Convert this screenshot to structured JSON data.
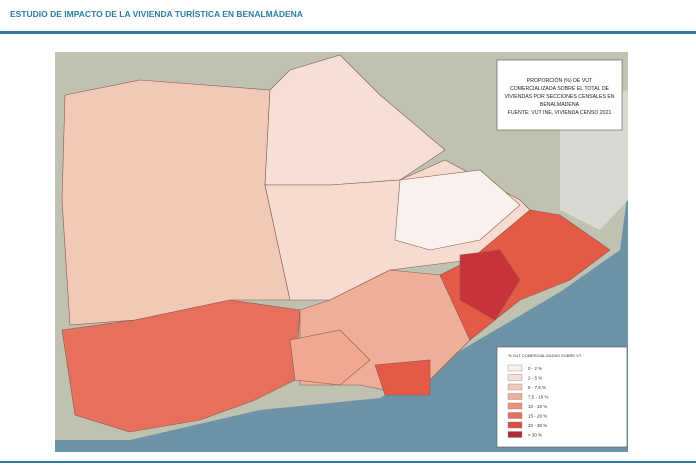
{
  "header": {
    "title": "ESTUDIO DE IMPACTO DE LA VIVIENDA TURÍSTICA EN BENALMÁDENA"
  },
  "map_title": {
    "lines": [
      "PROPORCIÓN (%) DE VUT",
      "COMERCIALIZADA SOBRE EL TOTAL DE",
      "VIVIENDAS POR SECCIONES CENSALES EN",
      "BENALMÁDENA",
      "FUENTE: VUT INE, VIVIENDA CENSO 2021"
    ]
  },
  "legend": {
    "title": "% VUT COMERCIALIZADAS SOBRE VT",
    "items": [
      {
        "label": "0 - 2 %",
        "color": "#f8f1ee"
      },
      {
        "label": "2 - 5 %",
        "color": "#f6dfd5"
      },
      {
        "label": "5 - 7,5 %",
        "color": "#f2c8b6"
      },
      {
        "label": "7,5 - 10 %",
        "color": "#efae97"
      },
      {
        "label": "10 - 15 %",
        "color": "#ec9279"
      },
      {
        "label": "15 - 20 %",
        "color": "#e6705b"
      },
      {
        "label": "20 - 30 %",
        "color": "#d84c43"
      },
      {
        "label": "> 30 %",
        "color": "#b02a33"
      }
    ]
  }
}
